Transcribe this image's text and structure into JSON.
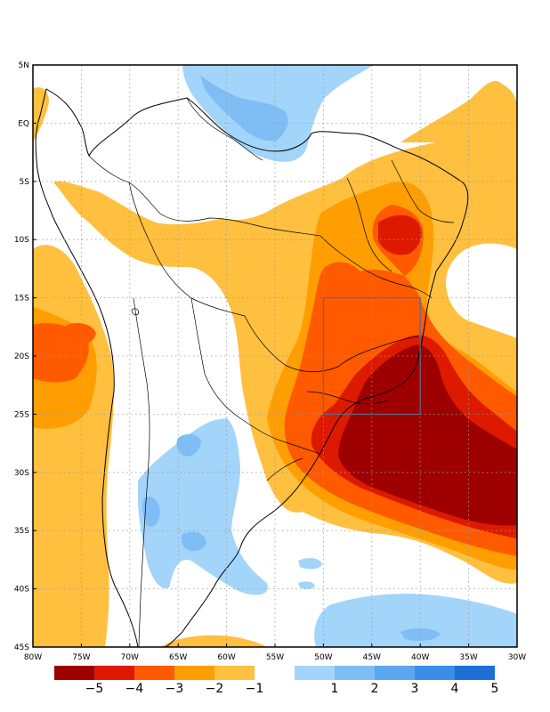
{
  "map": {
    "lon_labels": [
      "80W",
      "75W",
      "70W",
      "65W",
      "60W",
      "55W",
      "50W",
      "45W",
      "40W",
      "35W",
      "30W"
    ],
    "lat_labels": [
      "5N",
      "EQ",
      "5S",
      "10S",
      "15S",
      "20S",
      "25S",
      "30S",
      "35S",
      "40S",
      "45S"
    ],
    "lon_range": [
      -80,
      -30
    ],
    "lat_range": [
      -45,
      5
    ],
    "grid": "dotted",
    "highlight_box": {
      "lon": [
        -50,
        -40
      ],
      "lat": [
        -25,
        -15
      ],
      "color": "#5a6a8a"
    }
  },
  "colorbar": {
    "negative": {
      "colors": [
        "#9e0000",
        "#dd1a00",
        "#ff5a00",
        "#ff9e00",
        "#ffbf3f"
      ],
      "labels": [
        "−5",
        "−4",
        "−3",
        "−2",
        "−1"
      ]
    },
    "positive": {
      "colors": [
        "#a3d4fa",
        "#7fbdf5",
        "#5aa6ef",
        "#3a8ee8",
        "#1d6fd8"
      ],
      "labels": [
        "1",
        "2",
        "3",
        "4",
        "5"
      ]
    }
  },
  "colors": {
    "c1": "#ffbf3f",
    "c2": "#ff9e00",
    "c3": "#ff5a00",
    "c4": "#dd1a00",
    "c5": "#9e0000",
    "b1": "#a3d4fa",
    "b2": "#7fbdf5"
  }
}
